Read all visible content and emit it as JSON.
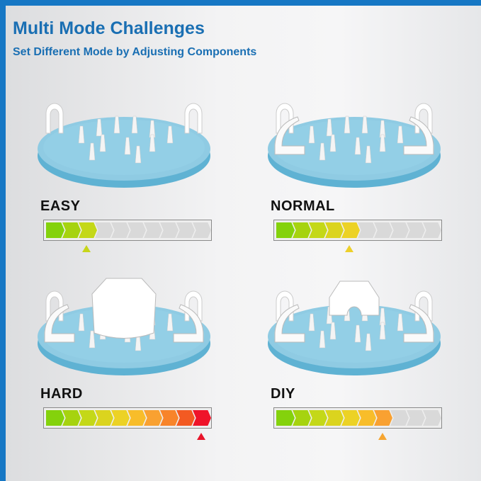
{
  "header": {
    "title": "Multi Mode Challenges",
    "subtitle": "Set Different Mode by Adjusting Components"
  },
  "segment_colors": [
    "#84d20c",
    "#a6d30f",
    "#c4d818",
    "#dbd41e",
    "#ecd225",
    "#f8bd2a",
    "#f9a131",
    "#f8842a",
    "#f35a22",
    "#ef1329"
  ],
  "empty_color": "#d9d9d9",
  "total_segments": 10,
  "modes": [
    {
      "label": "EASY",
      "level": 3,
      "marker_color": "#c7d51a"
    },
    {
      "label": "NORMAL",
      "level": 5,
      "marker_color": "#edd02a"
    },
    {
      "label": "HARD",
      "level": 10,
      "marker_color": "#e8142a"
    },
    {
      "label": "DIY",
      "level": 7,
      "marker_color": "#f6a531"
    }
  ]
}
